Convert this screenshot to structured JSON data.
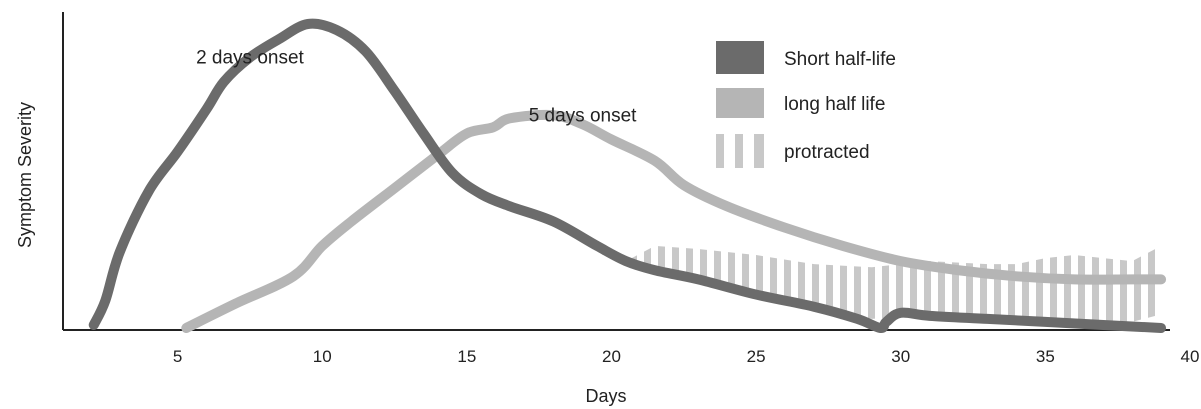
{
  "chart_data": {
    "type": "line",
    "title": "",
    "xlabel": "Days",
    "ylabel": "Symptom Severity",
    "xlim": [
      2,
      40
    ],
    "ylim": [
      0,
      100
    ],
    "xticks": [
      5,
      10,
      15,
      20,
      25,
      30,
      35,
      40
    ],
    "grid": false,
    "legend_position": "top-right",
    "annotations": [
      {
        "text": "2 days onset",
        "x": 7.5,
        "y": 87
      },
      {
        "text": "5 days onset",
        "x": 19,
        "y": 68
      }
    ],
    "series": [
      {
        "name": "Short half-life",
        "style": "line",
        "color": "#6b6b6b",
        "x": [
          2.1,
          2.5,
          3,
          4,
          5,
          6,
          6.6,
          7.5,
          8.5,
          9.5,
          10.5,
          11.5,
          12.5,
          13.5,
          14.5,
          15.5,
          16.5,
          18,
          19.5,
          20.5,
          21.5,
          23,
          25,
          27,
          28.5,
          29.3,
          29.5,
          30,
          31,
          33,
          35,
          37,
          39
        ],
        "y": [
          1,
          9,
          25,
          45,
          58,
          72,
          81,
          89,
          95,
          100,
          98,
          91,
          78,
          64,
          51,
          44,
          40,
          35,
          27,
          22,
          19,
          16,
          11,
          7,
          3,
          0,
          2,
          5,
          4,
          3,
          2,
          1,
          0
        ]
      },
      {
        "name": "long half life",
        "style": "line",
        "color": "#b5b5b5",
        "x": [
          5.3,
          7,
          9,
          10,
          11,
          12.5,
          14,
          15,
          15.9,
          16.5,
          18,
          19,
          20,
          21.5,
          22.5,
          24,
          26,
          28,
          30,
          32,
          34,
          36,
          38,
          39
        ],
        "y": [
          0,
          8,
          17,
          27,
          35,
          46,
          57,
          64,
          66,
          69,
          70,
          67,
          62,
          55,
          47,
          40,
          33,
          27,
          22,
          19,
          17,
          16,
          16,
          16
        ]
      },
      {
        "name": "protracted",
        "style": "hatched-area",
        "color": "#c8c8c8",
        "x": [
          20.5,
          21.5,
          23,
          25,
          27,
          29,
          31,
          33,
          34,
          35,
          36,
          37,
          38,
          38.8
        ],
        "y_upper": [
          22,
          27,
          26,
          24,
          21,
          20,
          22,
          21,
          21,
          23,
          24,
          23,
          22,
          26
        ],
        "y_lower": [
          20,
          18,
          15,
          11,
          7,
          3,
          4,
          3,
          2,
          2,
          2,
          2,
          2,
          4
        ]
      }
    ]
  }
}
